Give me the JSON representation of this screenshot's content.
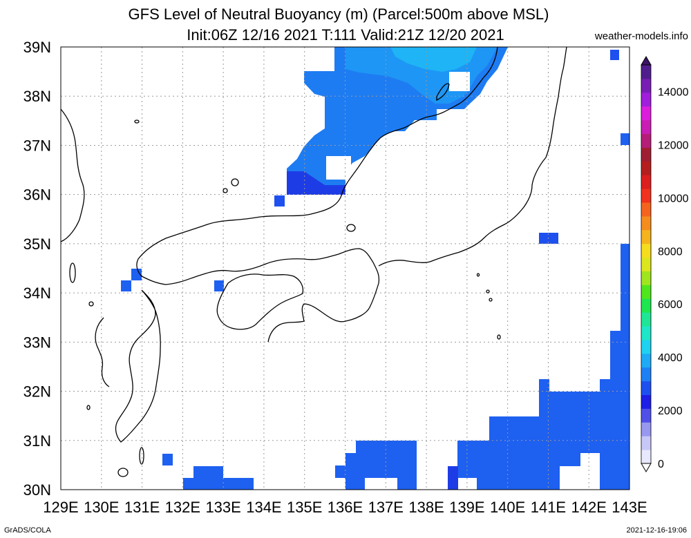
{
  "title": {
    "line1": "GFS Level of Neutral Buoyancy (m) (Parcel:500m above MSL)",
    "line2": "Init:06Z 12/16 2021 T:111 Valid:21Z 12/20 2021"
  },
  "site": "weather-models.info",
  "footer": {
    "left": "GrADS/COLA",
    "right": "2021-12-16-19:06"
  },
  "axes": {
    "lon_labels": [
      "129E",
      "130E",
      "131E",
      "132E",
      "133E",
      "134E",
      "135E",
      "136E",
      "137E",
      "138E",
      "139E",
      "140E",
      "141E",
      "142E",
      "143E"
    ],
    "lat_labels": [
      "39N",
      "38N",
      "37N",
      "36N",
      "35N",
      "34N",
      "33N",
      "32N",
      "31N",
      "30N"
    ]
  },
  "colorbar": {
    "labels": [
      "14000",
      "12000",
      "10000",
      "8000",
      "6000",
      "4000",
      "2000",
      "0"
    ],
    "colors": [
      "#e8e8ff",
      "#c8c8f8",
      "#9898f0",
      "#5050e8",
      "#1e1ee6",
      "#1e50f0",
      "#1e80f5",
      "#1eaaf5",
      "#1ed2f0",
      "#1ee6c8",
      "#1ee696",
      "#1ee650",
      "#50e61e",
      "#a0e61e",
      "#dce61e",
      "#f5dc1e",
      "#f5b41e",
      "#f58c1e",
      "#f5641e",
      "#f0321e",
      "#dc1e1e",
      "#b41e1e",
      "#a01e32",
      "#b41e78",
      "#c81eb4",
      "#dc1edc",
      "#a01edc",
      "#781eb4",
      "#501e8c"
    ]
  },
  "map_data": {
    "lon_range": [
      129,
      143
    ],
    "lat_range": [
      30,
      39
    ],
    "palette": {
      "light": "#1e6ef0",
      "mid": "#1e8cf5",
      "deep": "#1e3ce6",
      "sky": "#1eb4f5"
    }
  }
}
